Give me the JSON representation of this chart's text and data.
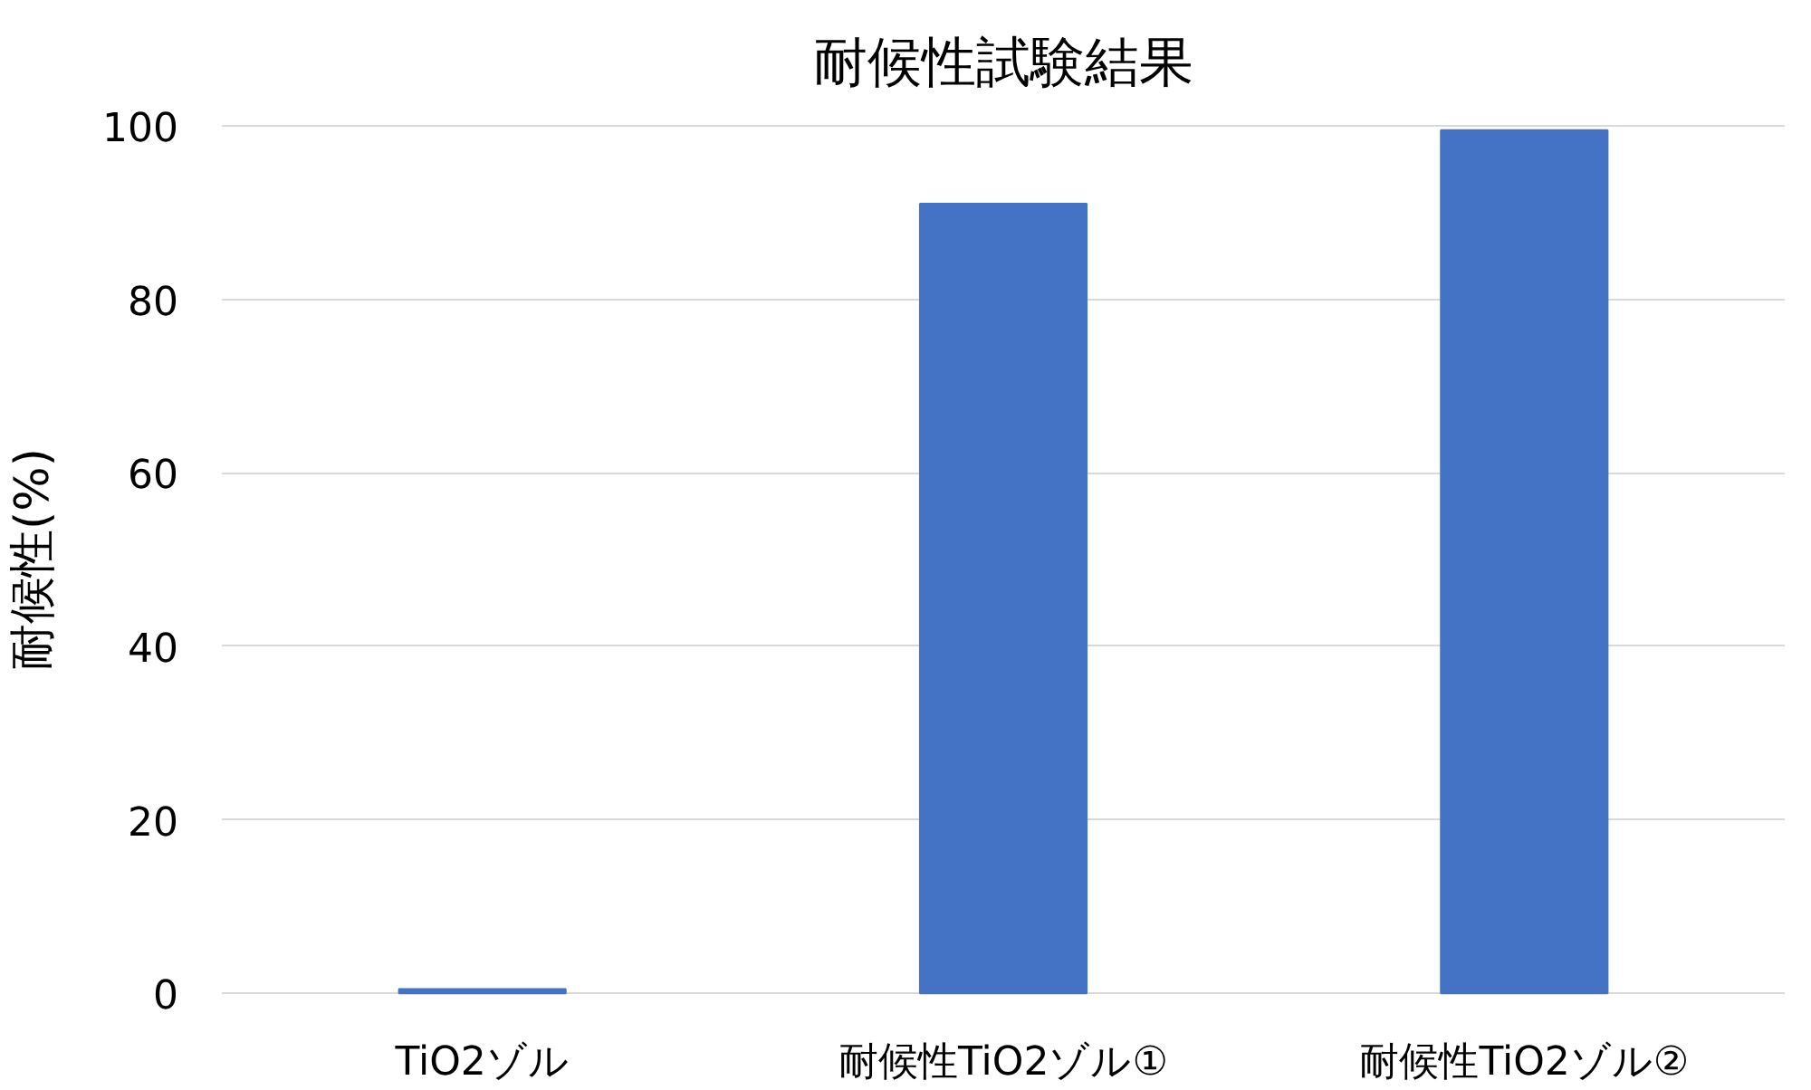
{
  "chart_data": {
    "type": "bar",
    "title": "耐候性試験結果",
    "ylabel": "耐候性(%)",
    "categories": [
      "TiO2ゾル",
      "耐候性TiO2ゾル①",
      "耐候性TiO2ゾル②"
    ],
    "values": [
      0.5,
      91,
      99.5
    ],
    "color": "#4472c4",
    "ylim": [
      0,
      100
    ],
    "yticks": [
      0,
      20,
      40,
      60,
      80,
      100
    ],
    "grid": "y"
  }
}
